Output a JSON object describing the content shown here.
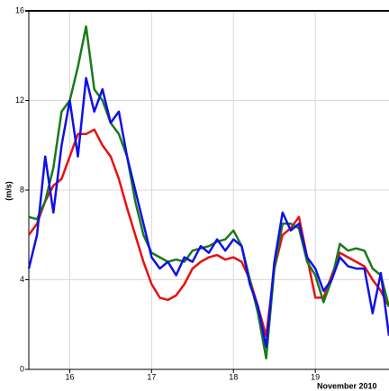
{
  "chart_data": {
    "type": "line",
    "y_label": "(m/s)",
    "x_label": "November 2010",
    "x": [
      15.5,
      15.6,
      15.7,
      15.8,
      15.9,
      16.0,
      16.1,
      16.2,
      16.3,
      16.4,
      16.5,
      16.6,
      16.7,
      16.8,
      16.9,
      17.0,
      17.1,
      17.2,
      17.3,
      17.4,
      17.5,
      17.6,
      17.7,
      17.8,
      17.9,
      18.0,
      18.1,
      18.2,
      18.3,
      18.4,
      18.5,
      18.6,
      18.7,
      18.8,
      18.9,
      19.0,
      19.1,
      19.2,
      19.3,
      19.4,
      19.5,
      19.6,
      19.7,
      19.8,
      19.9
    ],
    "series": [
      {
        "color": "#e81010",
        "values": [
          6,
          6.5,
          7.5,
          8.2,
          8.5,
          9.5,
          10.5,
          10.5,
          10.7,
          10,
          9.5,
          8.5,
          7.2,
          6,
          4.8,
          3.8,
          3.2,
          3.1,
          3.3,
          3.8,
          4.5,
          4.8,
          5,
          5.1,
          4.9,
          5,
          4.8,
          4,
          2.8,
          1.5,
          4.5,
          6,
          6.3,
          6.8,
          5,
          3.2,
          3.2,
          4.2,
          5.2,
          5,
          4.8,
          4.6,
          4,
          3.5,
          2.8
        ]
      },
      {
        "color": "#1a7a1a",
        "values": [
          6.8,
          6.7,
          7.5,
          9,
          11.5,
          12,
          13.5,
          15.3,
          12.5,
          12,
          11,
          10.5,
          9.5,
          7.5,
          6,
          5.2,
          5,
          4.8,
          4.9,
          4.8,
          5.3,
          5.4,
          5.5,
          5.7,
          5.8,
          6.2,
          5.5,
          4,
          2.5,
          0.5,
          4.5,
          6.5,
          6.5,
          6.3,
          4.8,
          4.2,
          3,
          4,
          5.6,
          5.3,
          5.4,
          5.3,
          4.5,
          4.2,
          2.8
        ]
      },
      {
        "color": "#1010e8",
        "values": [
          4.5,
          6,
          9.5,
          7,
          10,
          12,
          9.5,
          13,
          11.5,
          12.5,
          11,
          11.5,
          9.5,
          8,
          6.5,
          5,
          4.5,
          4.8,
          4.2,
          5,
          4.8,
          5.5,
          5.2,
          5.8,
          5.3,
          5.8,
          5.5,
          3.8,
          2.8,
          1,
          4.8,
          7,
          6.2,
          6.5,
          5,
          4.5,
          3.5,
          4,
          5,
          4.6,
          4.5,
          4.5,
          2.5,
          4.3,
          1.5
        ]
      }
    ],
    "xlim": [
      15.5,
      19.9
    ],
    "xticks": [
      16,
      17,
      18,
      19
    ],
    "ylim": [
      0,
      16
    ],
    "yticks": [
      0,
      4,
      8,
      12,
      16
    ],
    "grid": true
  }
}
